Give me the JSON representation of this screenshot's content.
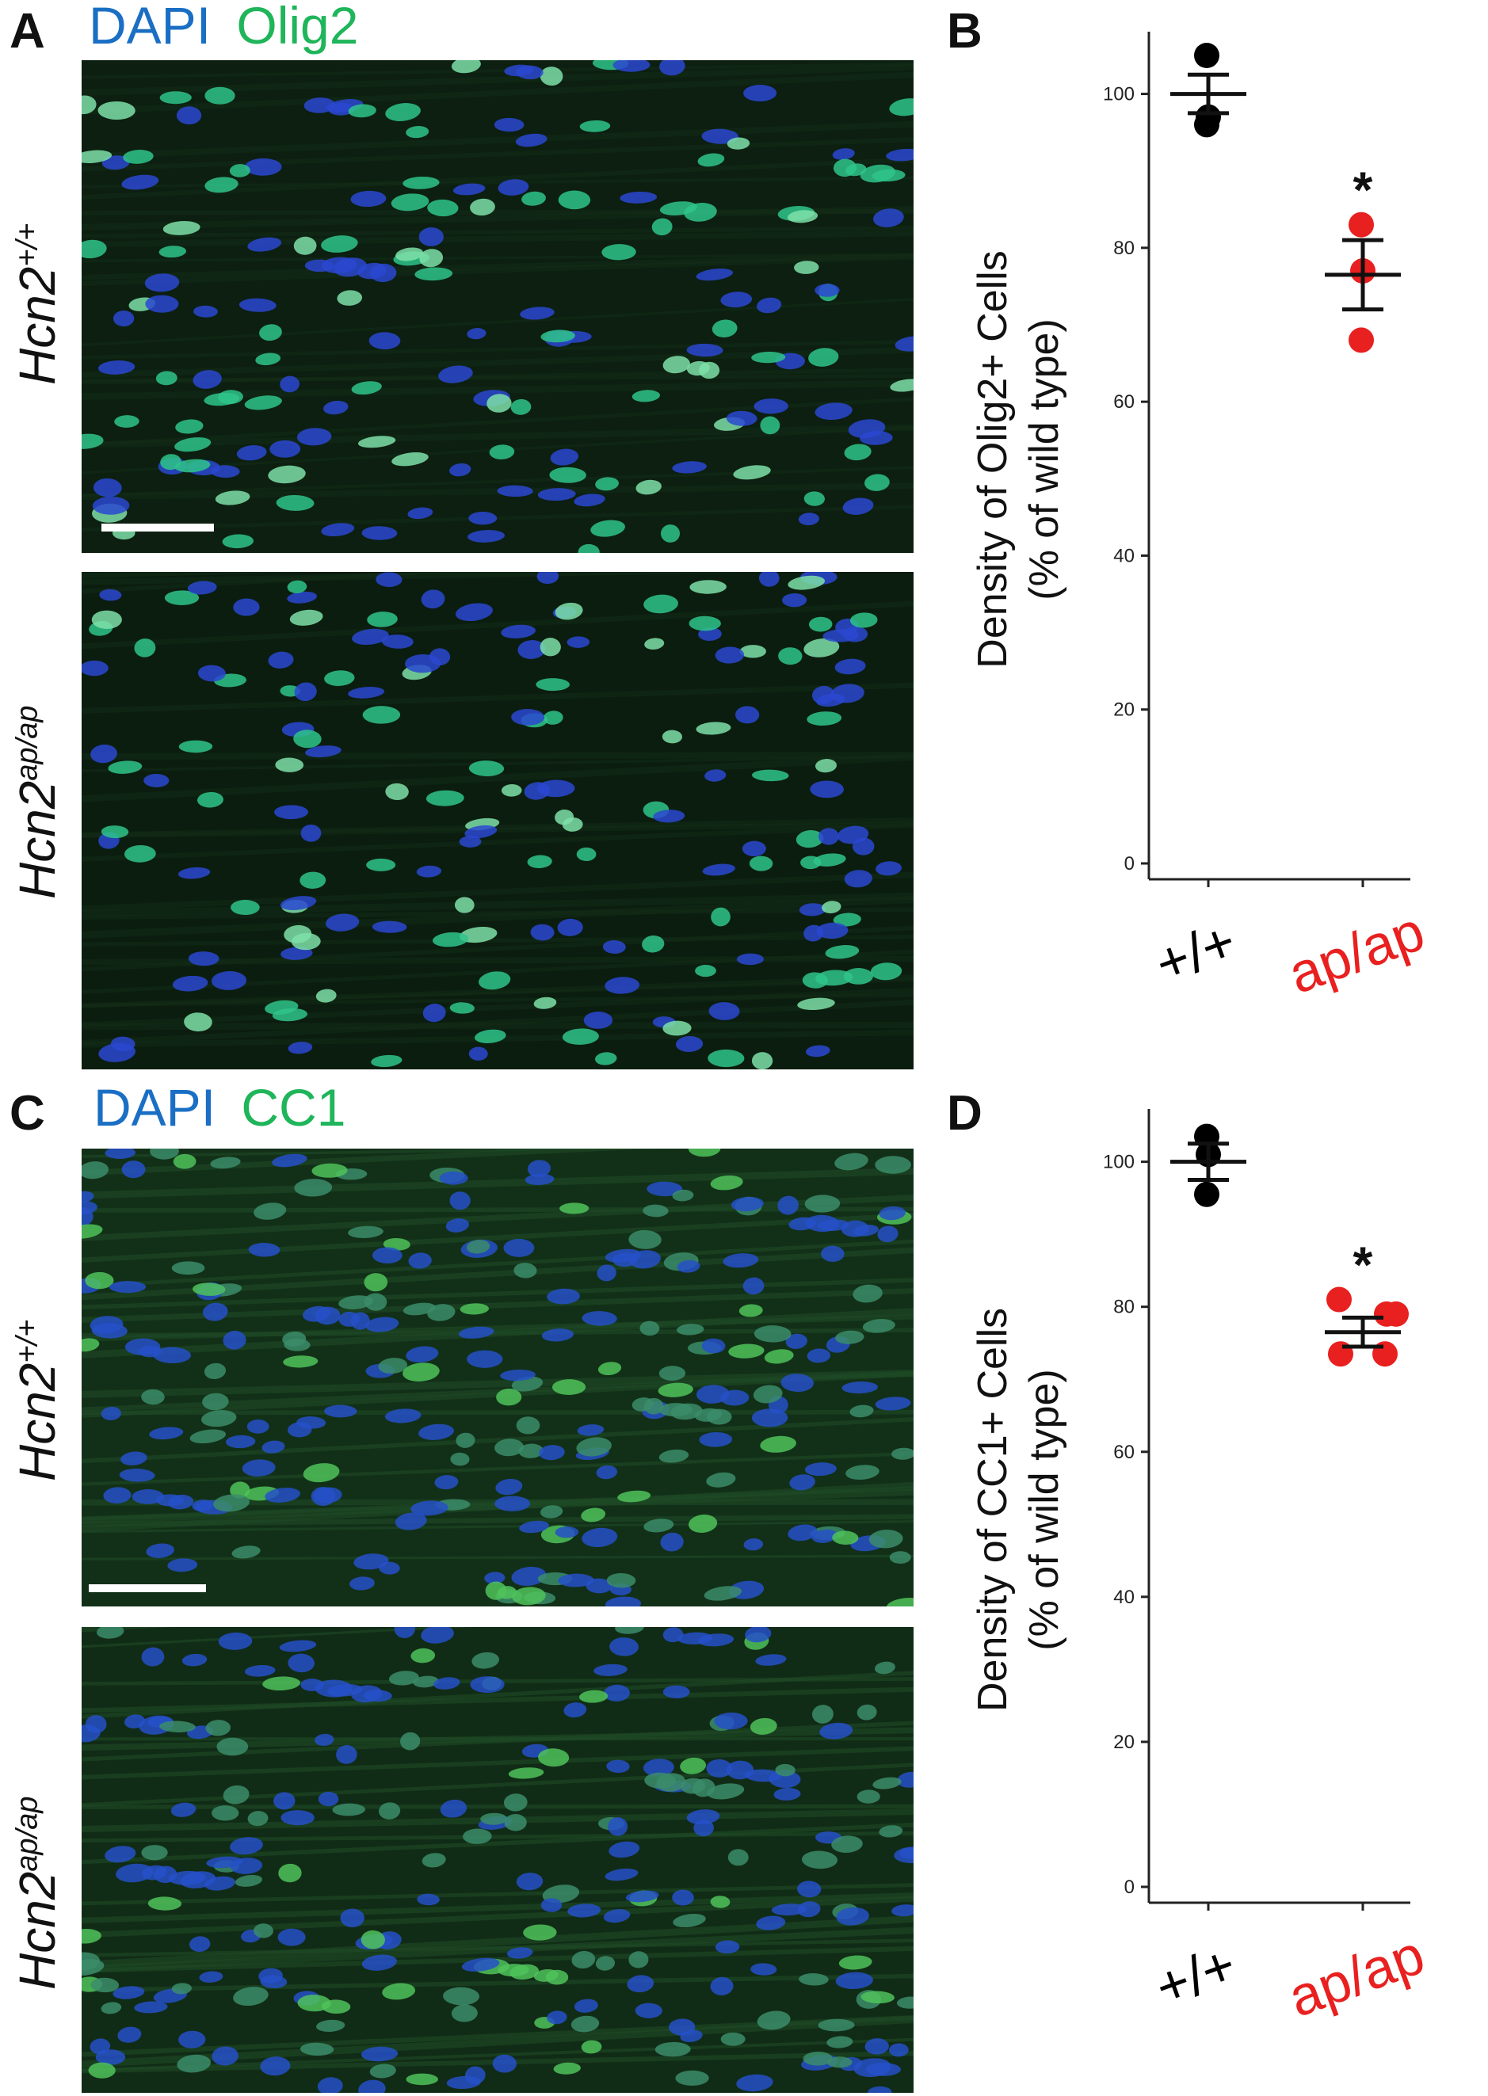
{
  "panels": {
    "A": {
      "letter": "A",
      "stain1": "DAPI",
      "stain2": "Olig2"
    },
    "B": {
      "letter": "B"
    },
    "C": {
      "letter": "C",
      "stain1": "DAPI",
      "stain2": "CC1"
    },
    "D": {
      "letter": "D"
    }
  },
  "genotypes": {
    "wt_base": "Hcn2",
    "wt_sup": "+/+",
    "mut_base": "Hcn2",
    "mut_sup": "ap/ap"
  },
  "colors": {
    "wt": "#000000",
    "mut": "#e8201f",
    "dapi": "#1a6fc4",
    "green": "#1fb55a"
  },
  "chart_data": [
    {
      "type": "scatter",
      "panel": "B",
      "ylabel_line1": "Density of Olig2+ Cells",
      "ylabel_line2": "(% of wild type)",
      "ylim": [
        0,
        105
      ],
      "yticks": [
        0,
        20,
        40,
        60,
        80,
        100
      ],
      "categories": [
        "+/+",
        "ap/ap"
      ],
      "category_colors": [
        "#000000",
        "#e8201f"
      ],
      "series": [
        {
          "category": "+/+",
          "points": [
            105,
            97,
            96
          ],
          "mean": 100,
          "sem_low": 97.5,
          "sem_high": 102.5
        },
        {
          "category": "ap/ap",
          "points": [
            83,
            77,
            68
          ],
          "mean": 76.5,
          "sem_low": 72,
          "sem_high": 81
        }
      ],
      "annotation": {
        "text": "*",
        "category": "ap/ap"
      }
    },
    {
      "type": "scatter",
      "panel": "D",
      "ylabel_line1": "Density of CC1+ Cells",
      "ylabel_line2": "(% of wild type)",
      "ylim": [
        0,
        104
      ],
      "yticks": [
        0,
        20,
        40,
        60,
        80,
        100
      ],
      "categories": [
        "+/+",
        "ap/ap"
      ],
      "category_colors": [
        "#000000",
        "#e8201f"
      ],
      "series": [
        {
          "category": "+/+",
          "points": [
            103.5,
            101,
            95.5
          ],
          "mean": 100,
          "sem_low": 97.5,
          "sem_high": 102.5
        },
        {
          "category": "ap/ap",
          "points": [
            81,
            79,
            73.5,
            73.5
          ],
          "mean": 76.5,
          "sem_low": 74.5,
          "sem_high": 78.5
        },
        {
          "category": "ap/ap-extra",
          "points": [
            79
          ],
          "mean": null,
          "sem_low": null,
          "sem_high": null
        }
      ],
      "annotation": {
        "text": "*",
        "category": "ap/ap"
      }
    }
  ]
}
